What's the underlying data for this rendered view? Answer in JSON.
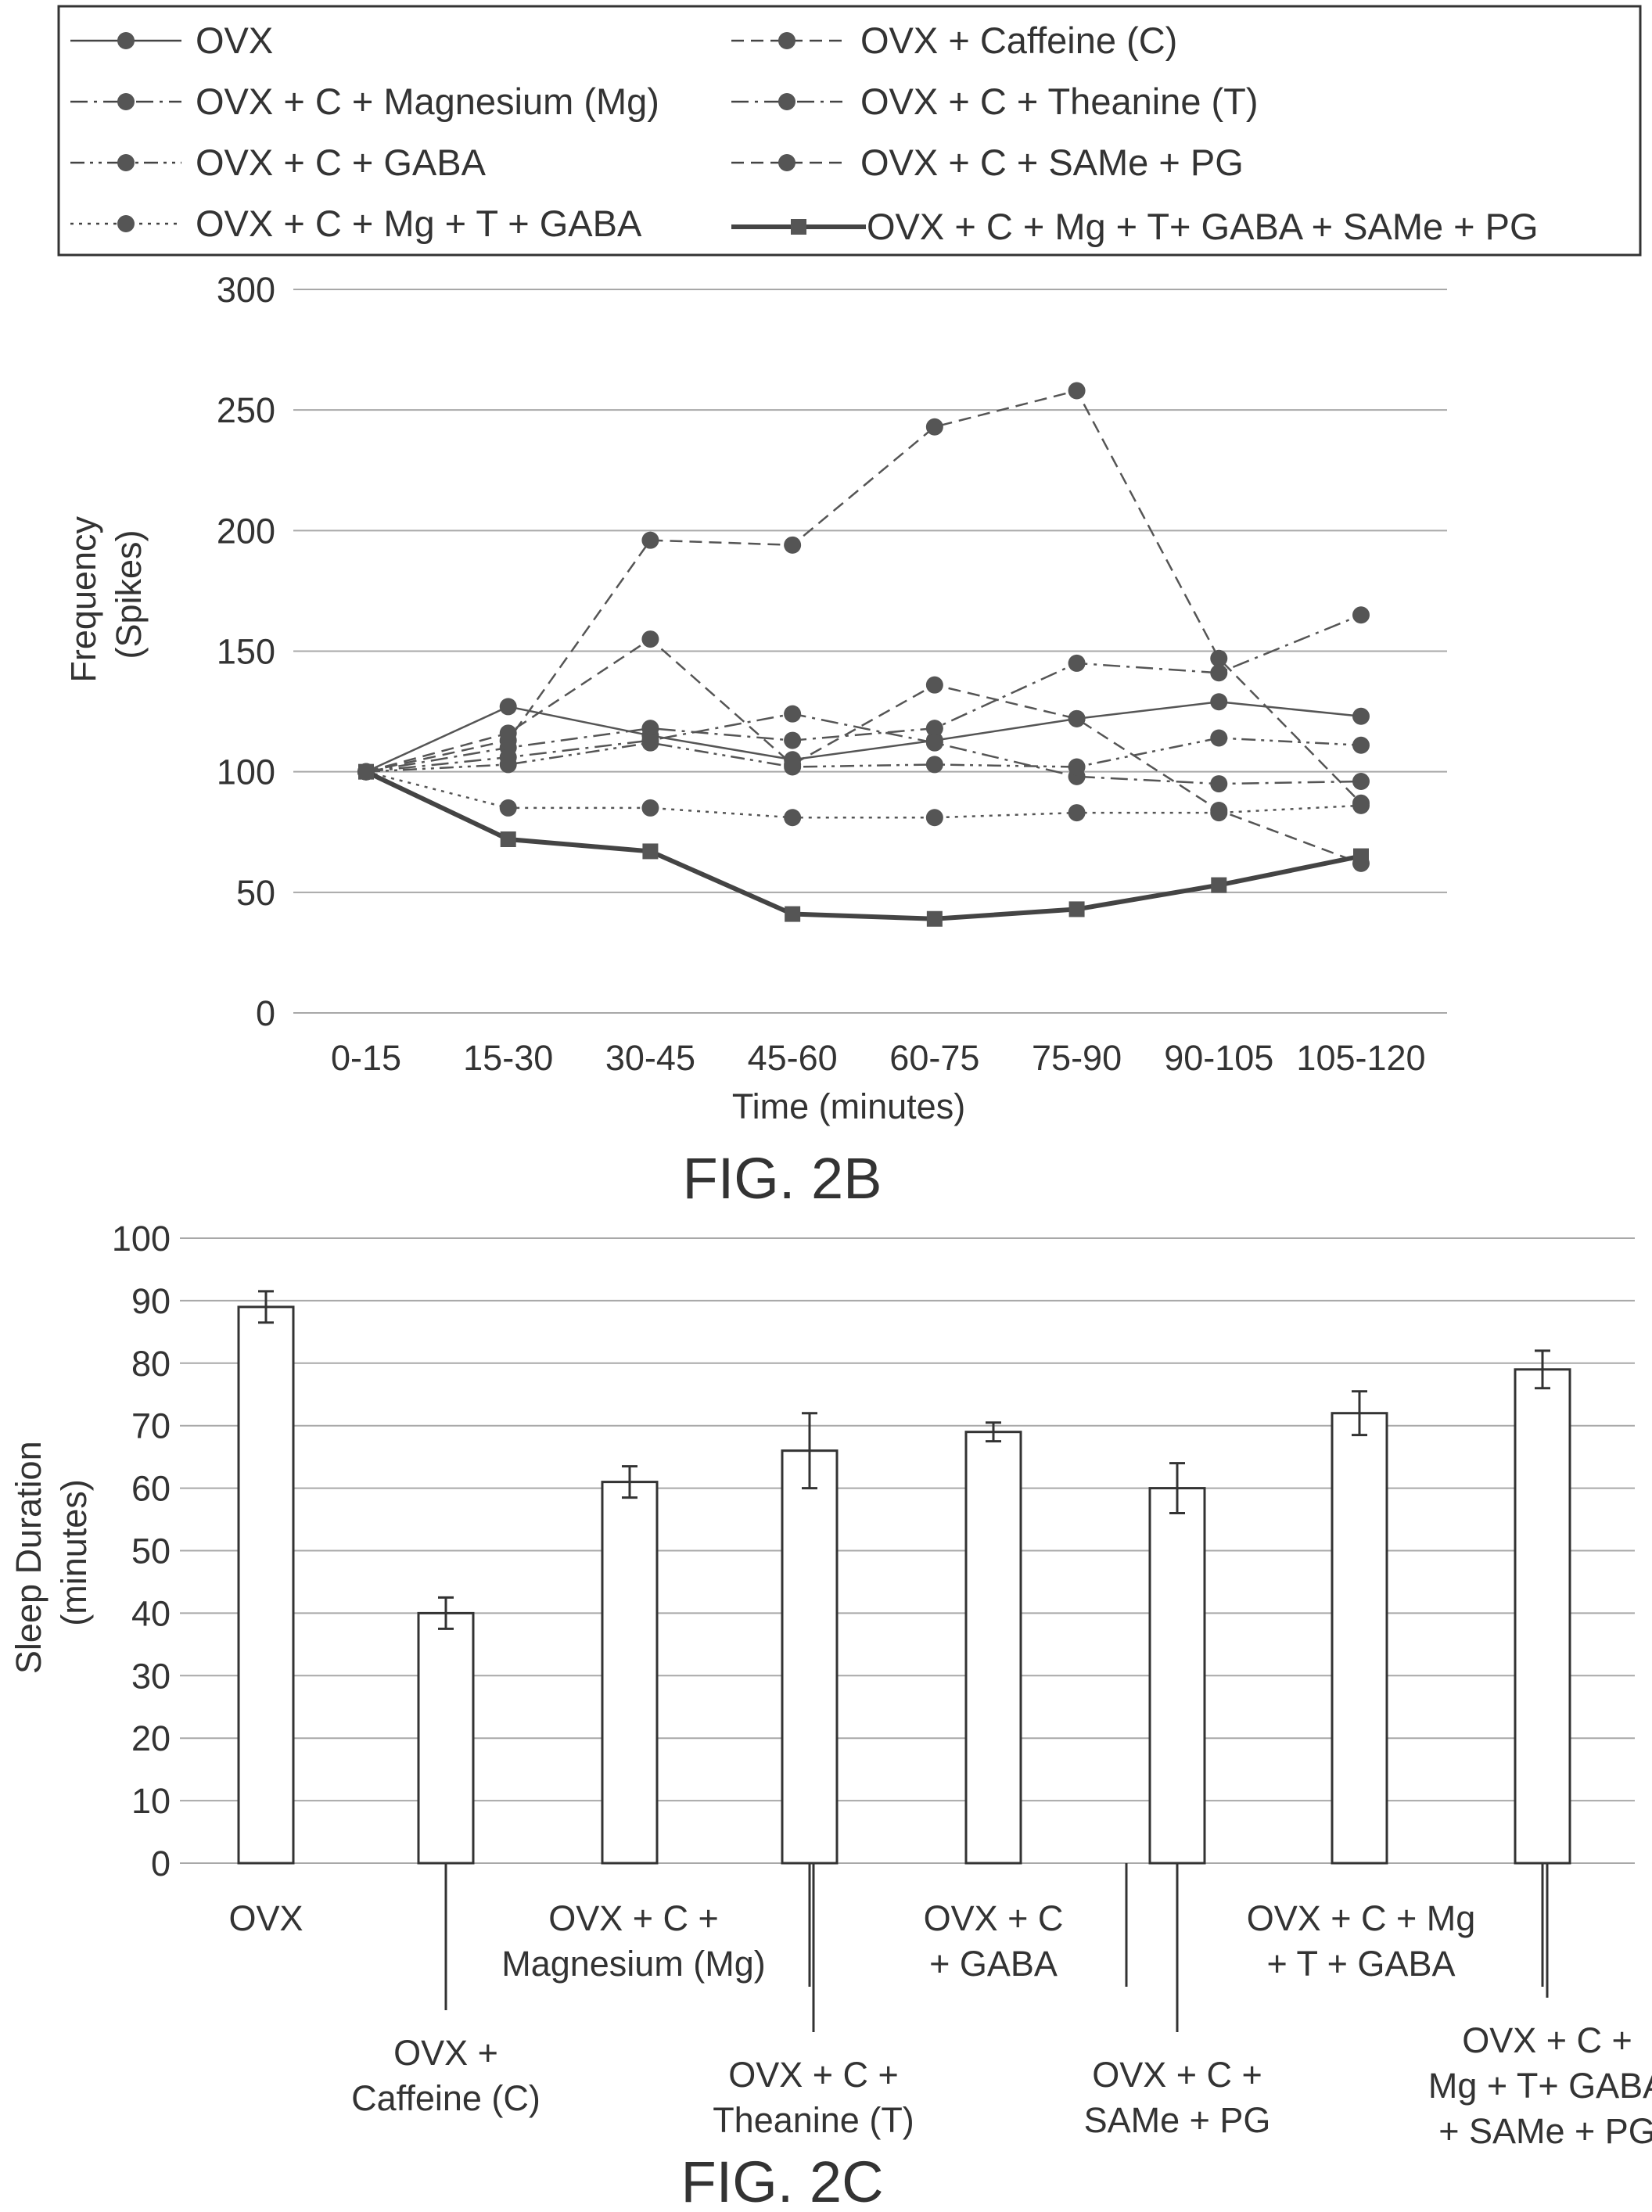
{
  "figures": [
    "FIG. 2B",
    "FIG. 2C"
  ],
  "chart_data": [
    {
      "type": "line",
      "title": "",
      "xlabel": "Time (minutes)",
      "ylabel_lines": [
        "Frequency",
        "(Spikes)"
      ],
      "ylim": [
        0,
        300
      ],
      "yticks": [
        0,
        50,
        100,
        150,
        200,
        250,
        300
      ],
      "grid": true,
      "legend_position": "top",
      "categories": [
        "0-15",
        "15-30",
        "30-45",
        "45-60",
        "60-75",
        "75-90",
        "90-105",
        "105-120"
      ],
      "series": [
        {
          "name": "OVX",
          "dash": "solid",
          "marker": "circle",
          "values": [
            100,
            127,
            115,
            105,
            113,
            122,
            129,
            123
          ]
        },
        {
          "name": "OVX + Caffeine (C)",
          "dash": "dashed",
          "marker": "circle",
          "values": [
            100,
            113,
            196,
            194,
            243,
            258,
            147,
            87
          ]
        },
        {
          "name": "OVX + C + Magnesium (Mg)",
          "dash": "dashdot",
          "marker": "circle",
          "values": [
            100,
            110,
            118,
            113,
            118,
            145,
            141,
            165
          ]
        },
        {
          "name": "OVX + C + Theanine (T)",
          "dash": "dashdot",
          "marker": "circle",
          "values": [
            100,
            106,
            113,
            124,
            112,
            98,
            95,
            96
          ]
        },
        {
          "name": "OVX + C + GABA",
          "dash": "dashdotdot",
          "marker": "circle",
          "values": [
            100,
            103,
            112,
            102,
            103,
            102,
            114,
            111
          ]
        },
        {
          "name": "OVX + C + SAMe + PG",
          "dash": "dashed",
          "marker": "circle",
          "values": [
            100,
            116,
            155,
            103,
            136,
            122,
            84,
            62
          ]
        },
        {
          "name": "OVX + C + Mg + T + GABA",
          "dash": "dotted",
          "marker": "circle",
          "values": [
            100,
            85,
            85,
            81,
            81,
            83,
            83,
            86
          ]
        },
        {
          "name": "OVX + C + Mg + T+ GABA + SAMe + PG",
          "dash": "thick",
          "marker": "square",
          "values": [
            100,
            72,
            67,
            41,
            39,
            43,
            53,
            65
          ]
        }
      ]
    },
    {
      "type": "bar",
      "title": "",
      "xlabel": "",
      "ylabel_lines": [
        "Sleep Duration",
        "(minutes)"
      ],
      "ylim": [
        0,
        100
      ],
      "yticks": [
        0,
        10,
        20,
        30,
        40,
        50,
        60,
        70,
        80,
        90,
        100
      ],
      "grid": true,
      "categories": [
        [
          "OVX"
        ],
        [
          "OVX +",
          "Caffeine (C)"
        ],
        [
          "OVX + C +",
          "Magnesium (Mg)"
        ],
        [
          "OVX + C +",
          "Theanine (T)"
        ],
        [
          "OVX + C",
          "+ GABA"
        ],
        [
          "OVX + C +",
          "SAMe + PG"
        ],
        [
          "OVX + C + Mg",
          "+ T + GABA"
        ],
        [
          "OVX + C +",
          "Mg + T+ GABA",
          "+ SAMe + PG"
        ]
      ],
      "values": [
        89,
        40,
        61,
        66,
        69,
        60,
        72,
        79
      ],
      "error": [
        2.5,
        2.5,
        2.5,
        6,
        1.5,
        4,
        3.5,
        3
      ]
    }
  ]
}
